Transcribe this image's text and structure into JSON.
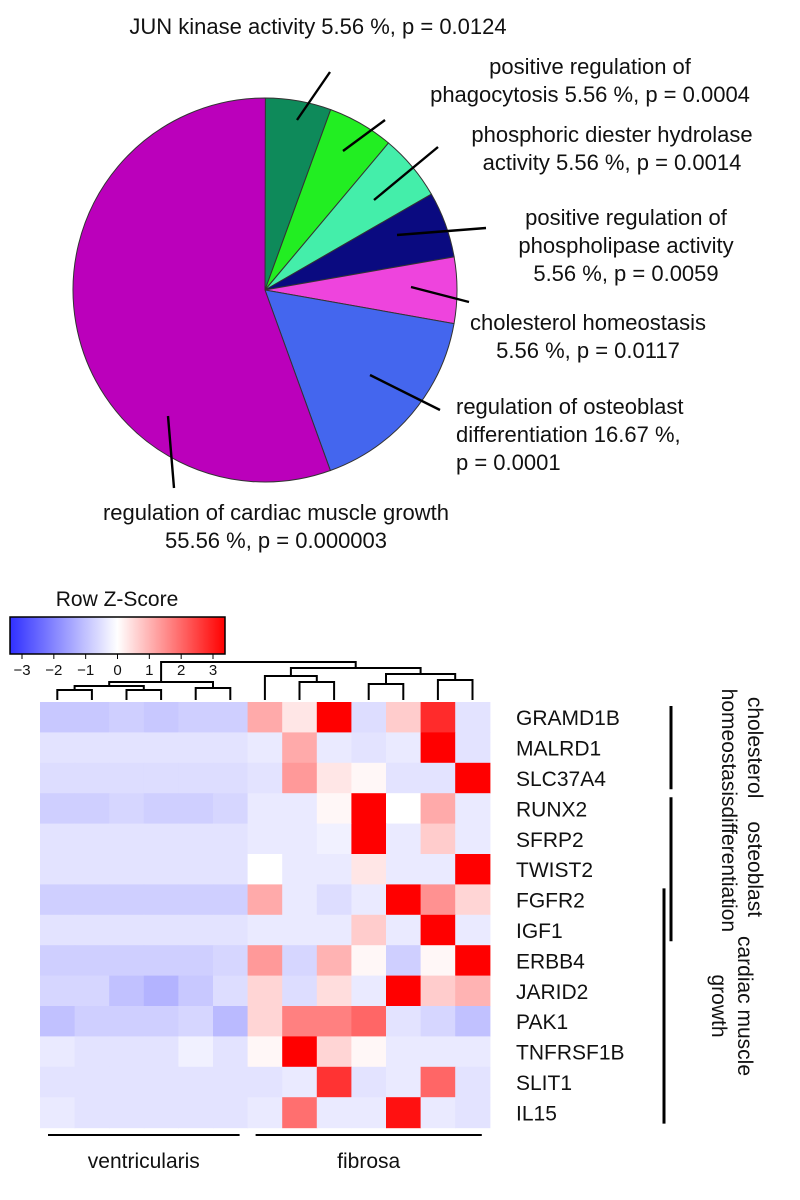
{
  "chart_data": [
    {
      "type": "pie",
      "slices": [
        {
          "label_lines": [
            "JUN kinase activity 5.56 %, p = 0.0124"
          ],
          "percent": 5.56,
          "color": "#0e8a5a"
        },
        {
          "label_lines": [
            "positive regulation of",
            "phagocytosis 5.56 %, p = 0.0004"
          ],
          "percent": 5.56,
          "color": "#22ee22"
        },
        {
          "label_lines": [
            "phosphoric diester hydrolase",
            "activity 5.56 %, p = 0.0014"
          ],
          "percent": 5.56,
          "color": "#44eeaa"
        },
        {
          "label_lines": [
            "positive regulation of",
            "phospholipase activity",
            "5.56 %, p = 0.0059"
          ],
          "percent": 5.56,
          "color": "#0a0a80"
        },
        {
          "label_lines": [
            "cholesterol homeostasis",
            "5.56 %, p = 0.0117"
          ],
          "percent": 5.56,
          "color": "#ee44dd"
        },
        {
          "label_lines": [
            "regulation of osteoblast",
            "differentiation 16.67 %,",
            "p = 0.0001"
          ],
          "percent": 16.67,
          "color": "#4466ee"
        },
        {
          "label_lines": [
            "regulation of cardiac muscle growth",
            "55.56 %, p = 0.000003"
          ],
          "percent": 55.56,
          "color": "#bb00bb"
        }
      ]
    },
    {
      "type": "heatmap",
      "colorbar": {
        "title": "Row Z-Score",
        "ticks": [
          "−3",
          "−2",
          "−1",
          "0",
          "1",
          "2",
          "3"
        ],
        "range": [
          -3,
          3
        ],
        "low_color": "#3030ff",
        "mid_color": "#ffffff",
        "high_color": "#ff0000"
      },
      "genes": [
        "GRAMD1B",
        "MALRD1",
        "SLC37A4",
        "RUNX2",
        "SFRP2",
        "TWIST2",
        "FGFR2",
        "IGF1",
        "ERBB4",
        "JARID2",
        "PAK1",
        "TNFRSF1B",
        "SLIT1",
        "IL15"
      ],
      "groups": [
        {
          "label": "ventricularis",
          "columns": 6
        },
        {
          "label": "fibrosa",
          "columns": 7
        }
      ],
      "values": [
        [
          -0.8,
          -0.8,
          -0.7,
          -0.8,
          -0.7,
          -0.7,
          1.0,
          0.3,
          3.0,
          -0.5,
          0.6,
          2.5,
          -0.4
        ],
        [
          -0.4,
          -0.4,
          -0.4,
          -0.4,
          -0.4,
          -0.4,
          -0.3,
          1.0,
          -0.3,
          -0.4,
          -0.3,
          3.0,
          -0.4
        ],
        [
          -0.5,
          -0.5,
          -0.5,
          -0.5,
          -0.5,
          -0.5,
          -0.4,
          1.2,
          0.3,
          0.1,
          -0.4,
          -0.4,
          3.0
        ],
        [
          -0.7,
          -0.7,
          -0.6,
          -0.7,
          -0.7,
          -0.6,
          -0.3,
          -0.3,
          0.1,
          3.0,
          0.0,
          1.0,
          -0.3
        ],
        [
          -0.4,
          -0.4,
          -0.4,
          -0.4,
          -0.4,
          -0.4,
          -0.3,
          -0.3,
          -0.2,
          3.0,
          -0.3,
          0.6,
          -0.3
        ],
        [
          -0.4,
          -0.4,
          -0.4,
          -0.4,
          -0.4,
          -0.4,
          0.0,
          -0.3,
          -0.3,
          0.3,
          -0.3,
          -0.3,
          3.0
        ],
        [
          -0.7,
          -0.7,
          -0.7,
          -0.7,
          -0.7,
          -0.7,
          1.0,
          -0.3,
          -0.5,
          -0.3,
          3.0,
          1.3,
          0.5
        ],
        [
          -0.4,
          -0.4,
          -0.4,
          -0.4,
          -0.4,
          -0.4,
          -0.3,
          -0.3,
          -0.3,
          0.6,
          -0.3,
          3.0,
          -0.3
        ],
        [
          -0.7,
          -0.7,
          -0.7,
          -0.7,
          -0.7,
          -0.6,
          1.2,
          -0.6,
          0.9,
          0.1,
          -0.7,
          0.1,
          3.0
        ],
        [
          -0.6,
          -0.6,
          -0.9,
          -1.1,
          -0.8,
          -0.5,
          0.5,
          -0.5,
          0.4,
          -0.3,
          3.0,
          0.6,
          0.9
        ],
        [
          -0.9,
          -0.7,
          -0.7,
          -0.7,
          -0.6,
          -1.0,
          0.5,
          1.5,
          1.5,
          1.8,
          -0.4,
          -0.6,
          -0.9
        ],
        [
          -0.3,
          -0.4,
          -0.4,
          -0.4,
          -0.2,
          -0.4,
          0.1,
          3.0,
          0.5,
          0.1,
          -0.3,
          -0.3,
          -0.3
        ],
        [
          -0.4,
          -0.4,
          -0.4,
          -0.4,
          -0.4,
          -0.4,
          -0.4,
          -0.3,
          2.4,
          -0.4,
          -0.3,
          1.8,
          -0.4
        ],
        [
          -0.3,
          -0.4,
          -0.4,
          -0.4,
          -0.4,
          -0.4,
          -0.3,
          1.7,
          -0.3,
          -0.3,
          2.8,
          -0.3,
          -0.4
        ]
      ],
      "annotations": [
        {
          "lines": [
            "cholesterol",
            "homeostasis"
          ],
          "start_gene": "GRAMD1B",
          "end_gene": "SLC37A4"
        },
        {
          "lines": [
            "osteoblast",
            "differentiation"
          ],
          "start_gene": "RUNX2",
          "end_gene": "IGF1"
        },
        {
          "lines": [
            "cardiac muscle",
            "growth"
          ],
          "start_gene": "FGFR2",
          "end_gene": "IL15"
        }
      ]
    }
  ]
}
